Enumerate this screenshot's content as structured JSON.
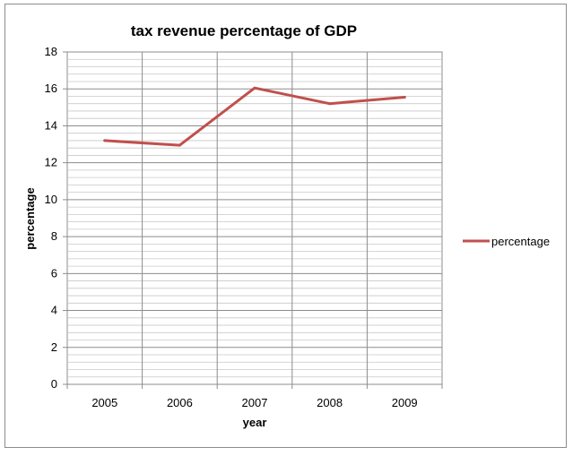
{
  "chart_data": {
    "type": "line",
    "title": "tax revenue percentage of GDP",
    "xlabel": "year",
    "ylabel": "percentage",
    "categories": [
      "2005",
      "2006",
      "2007",
      "2008",
      "2009"
    ],
    "series": [
      {
        "name": "percentage",
        "values": [
          13.2,
          12.95,
          16.05,
          15.2,
          15.55
        ],
        "color": "#c0504d"
      }
    ],
    "ylim": [
      0,
      18
    ],
    "y_major_step": 2,
    "y_minor_step": 0.4,
    "y_tick_labels": [
      "0",
      "2",
      "4",
      "6",
      "8",
      "10",
      "12",
      "14",
      "16",
      "18"
    ],
    "grid": true,
    "legend_position": "right"
  }
}
